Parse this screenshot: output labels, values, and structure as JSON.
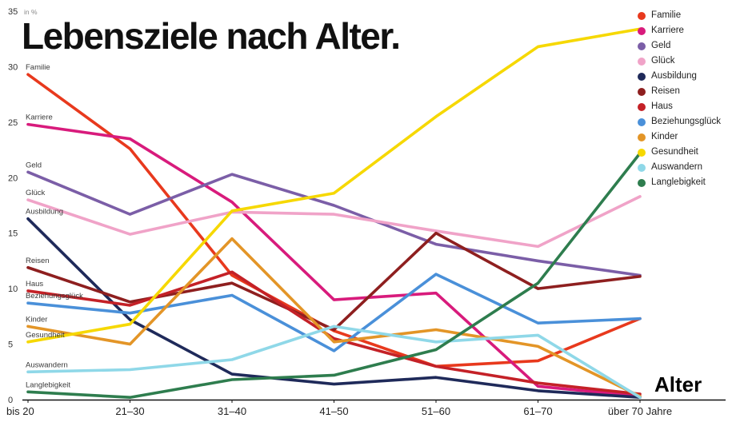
{
  "title": "Lebensziele nach Alter.",
  "axis": {
    "y_unit": "in %",
    "y_ticks": [
      0,
      5,
      10,
      15,
      20,
      25,
      30,
      35
    ],
    "x_label": "Alter"
  },
  "chart_data": {
    "type": "line",
    "title": "Lebensziele nach Alter.",
    "xlabel": "Alter",
    "ylabel": "in %",
    "ylim": [
      0,
      35
    ],
    "grid": false,
    "legend_position": "top-right",
    "categories": [
      "bis 20",
      "21–30",
      "31–40",
      "41–50",
      "51–60",
      "61–70",
      "über 70 Jahre"
    ],
    "series": [
      {
        "name": "Familie",
        "color": "#e8391d",
        "values": [
          29.3,
          22.6,
          11.2,
          6.2,
          3.0,
          3.5,
          7.3
        ]
      },
      {
        "name": "Karriere",
        "color": "#d81b7c",
        "values": [
          24.8,
          23.5,
          17.8,
          9.0,
          9.6,
          1.2,
          0.3
        ]
      },
      {
        "name": "Geld",
        "color": "#7b5ea7",
        "values": [
          20.5,
          16.7,
          20.3,
          17.5,
          14.0,
          12.5,
          11.2
        ]
      },
      {
        "name": "Glück",
        "color": "#f0a3c8",
        "values": [
          18.0,
          14.9,
          16.9,
          16.7,
          15.2,
          13.8,
          18.3
        ]
      },
      {
        "name": "Ausbildung",
        "color": "#1f2a5a",
        "values": [
          16.3,
          7.2,
          2.3,
          1.4,
          2.0,
          0.8,
          0.2
        ]
      },
      {
        "name": "Reisen",
        "color": "#8e1f1f",
        "values": [
          11.9,
          8.8,
          10.5,
          6.3,
          15.0,
          10.0,
          11.1
        ]
      },
      {
        "name": "Haus",
        "color": "#c42127",
        "values": [
          9.8,
          8.5,
          11.5,
          5.5,
          3.0,
          1.5,
          0.5
        ]
      },
      {
        "name": "Beziehungsglück",
        "color": "#4a90d9",
        "values": [
          8.7,
          7.8,
          9.4,
          4.4,
          11.3,
          6.9,
          7.3
        ]
      },
      {
        "name": "Kinder",
        "color": "#e39527",
        "values": [
          6.6,
          5.0,
          14.5,
          5.2,
          6.3,
          4.8,
          0.3
        ]
      },
      {
        "name": "Gesundheit",
        "color": "#f6d800",
        "values": [
          5.2,
          6.8,
          17.0,
          18.6,
          25.5,
          31.8,
          33.4
        ]
      },
      {
        "name": "Auswandern",
        "color": "#8fd8e8",
        "values": [
          2.5,
          2.7,
          3.6,
          6.6,
          5.2,
          5.8,
          0.2
        ]
      },
      {
        "name": "Langlebigkeit",
        "color": "#2e7d4e",
        "values": [
          0.7,
          0.2,
          1.8,
          2.2,
          4.5,
          10.5,
          22.2
        ]
      }
    ]
  }
}
